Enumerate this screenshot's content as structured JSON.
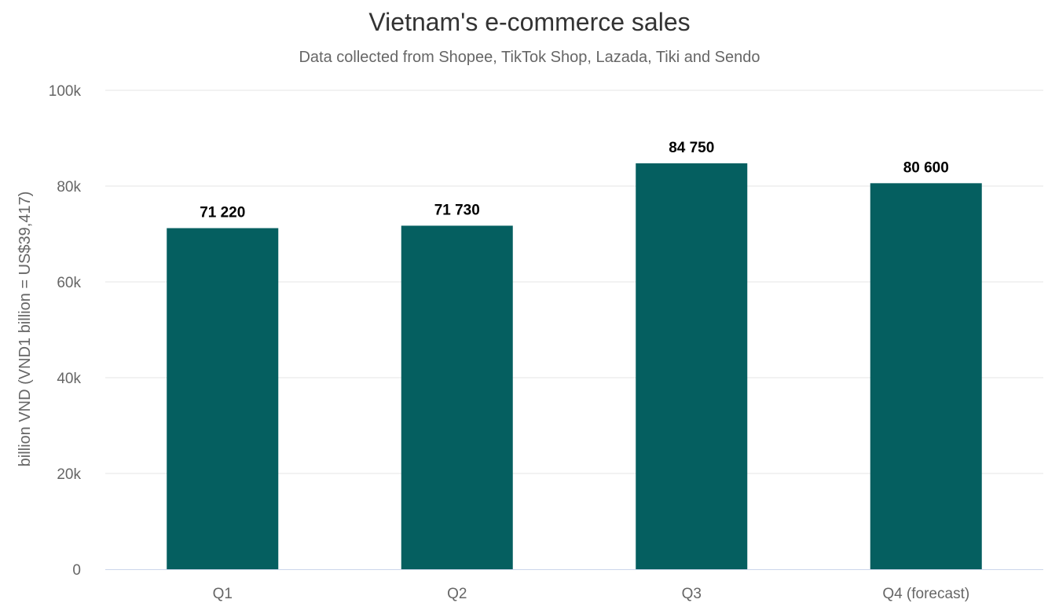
{
  "chart_data": {
    "type": "bar",
    "title": "Vietnam's e-commerce sales",
    "subtitle": "Data collected from Shopee, TikTok Shop, Lazada, Tiki and Sendo",
    "ylabel": "billion VND (VND1 billion = US$39,417)",
    "xlabel": "",
    "categories": [
      "Q1",
      "Q2",
      "Q3",
      "Q4 (forecast)"
    ],
    "values": [
      71220,
      71730,
      84750,
      80600
    ],
    "value_labels": [
      "71 220",
      "71 730",
      "84 750",
      "80 600"
    ],
    "ylim": [
      0,
      100000
    ],
    "y_ticks": [
      {
        "value": 0,
        "label": "0"
      },
      {
        "value": 20000,
        "label": "20k"
      },
      {
        "value": 40000,
        "label": "40k"
      },
      {
        "value": 60000,
        "label": "60k"
      },
      {
        "value": 80000,
        "label": "80k"
      },
      {
        "value": 100000,
        "label": "100k"
      }
    ],
    "grid": true,
    "bar_color": "#055f60",
    "grid_color": "#e6e6e6",
    "axis_color": "#ccd6eb"
  }
}
